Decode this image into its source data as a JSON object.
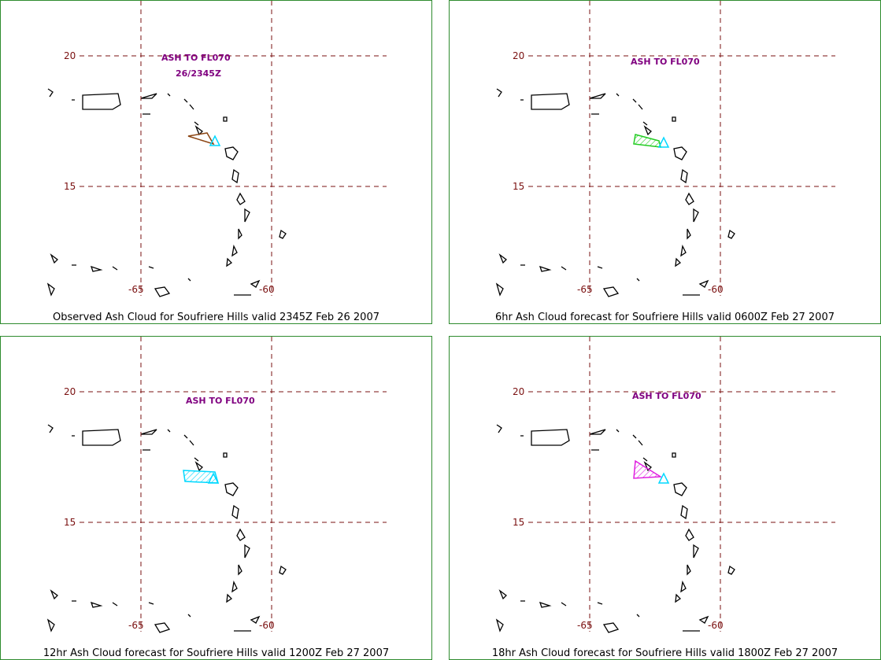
{
  "colors": {
    "grid": "#7a1010",
    "annotation": "#800080",
    "volcano_marker": "#00d8ff",
    "panel_border": "#2e8b2e"
  },
  "grid_labels": {
    "lat_upper": "20",
    "lat_lower": "15",
    "lon_left": "-65",
    "lon_right": "-60"
  },
  "panels": [
    {
      "caption": "Observed Ash Cloud for Soufriere  Hills valid 2345Z Feb 26 2007",
      "ash_label": "ASH TO FL070",
      "ash_time": "26/2345Z",
      "cloud_color": "#8b4513",
      "cloud_hatched": false
    },
    {
      "caption": "6hr Ash Cloud forecast for Soufriere  Hills valid 0600Z Feb 27 2007",
      "ash_label": "ASH TO FL070",
      "cloud_color": "#22cc22",
      "cloud_hatched": true
    },
    {
      "caption": "12hr Ash Cloud forecast for Soufriere  Hills valid 1200Z Feb 27 2007",
      "ash_label": "ASH TO FL070",
      "cloud_color": "#00d8ff",
      "cloud_hatched": true
    },
    {
      "caption": "18hr Ash Cloud forecast for Soufriere  Hills valid 1800Z Feb 27 2007",
      "ash_label": "ASH TO FL070",
      "cloud_color": "#e020e0",
      "cloud_hatched": true
    }
  ]
}
